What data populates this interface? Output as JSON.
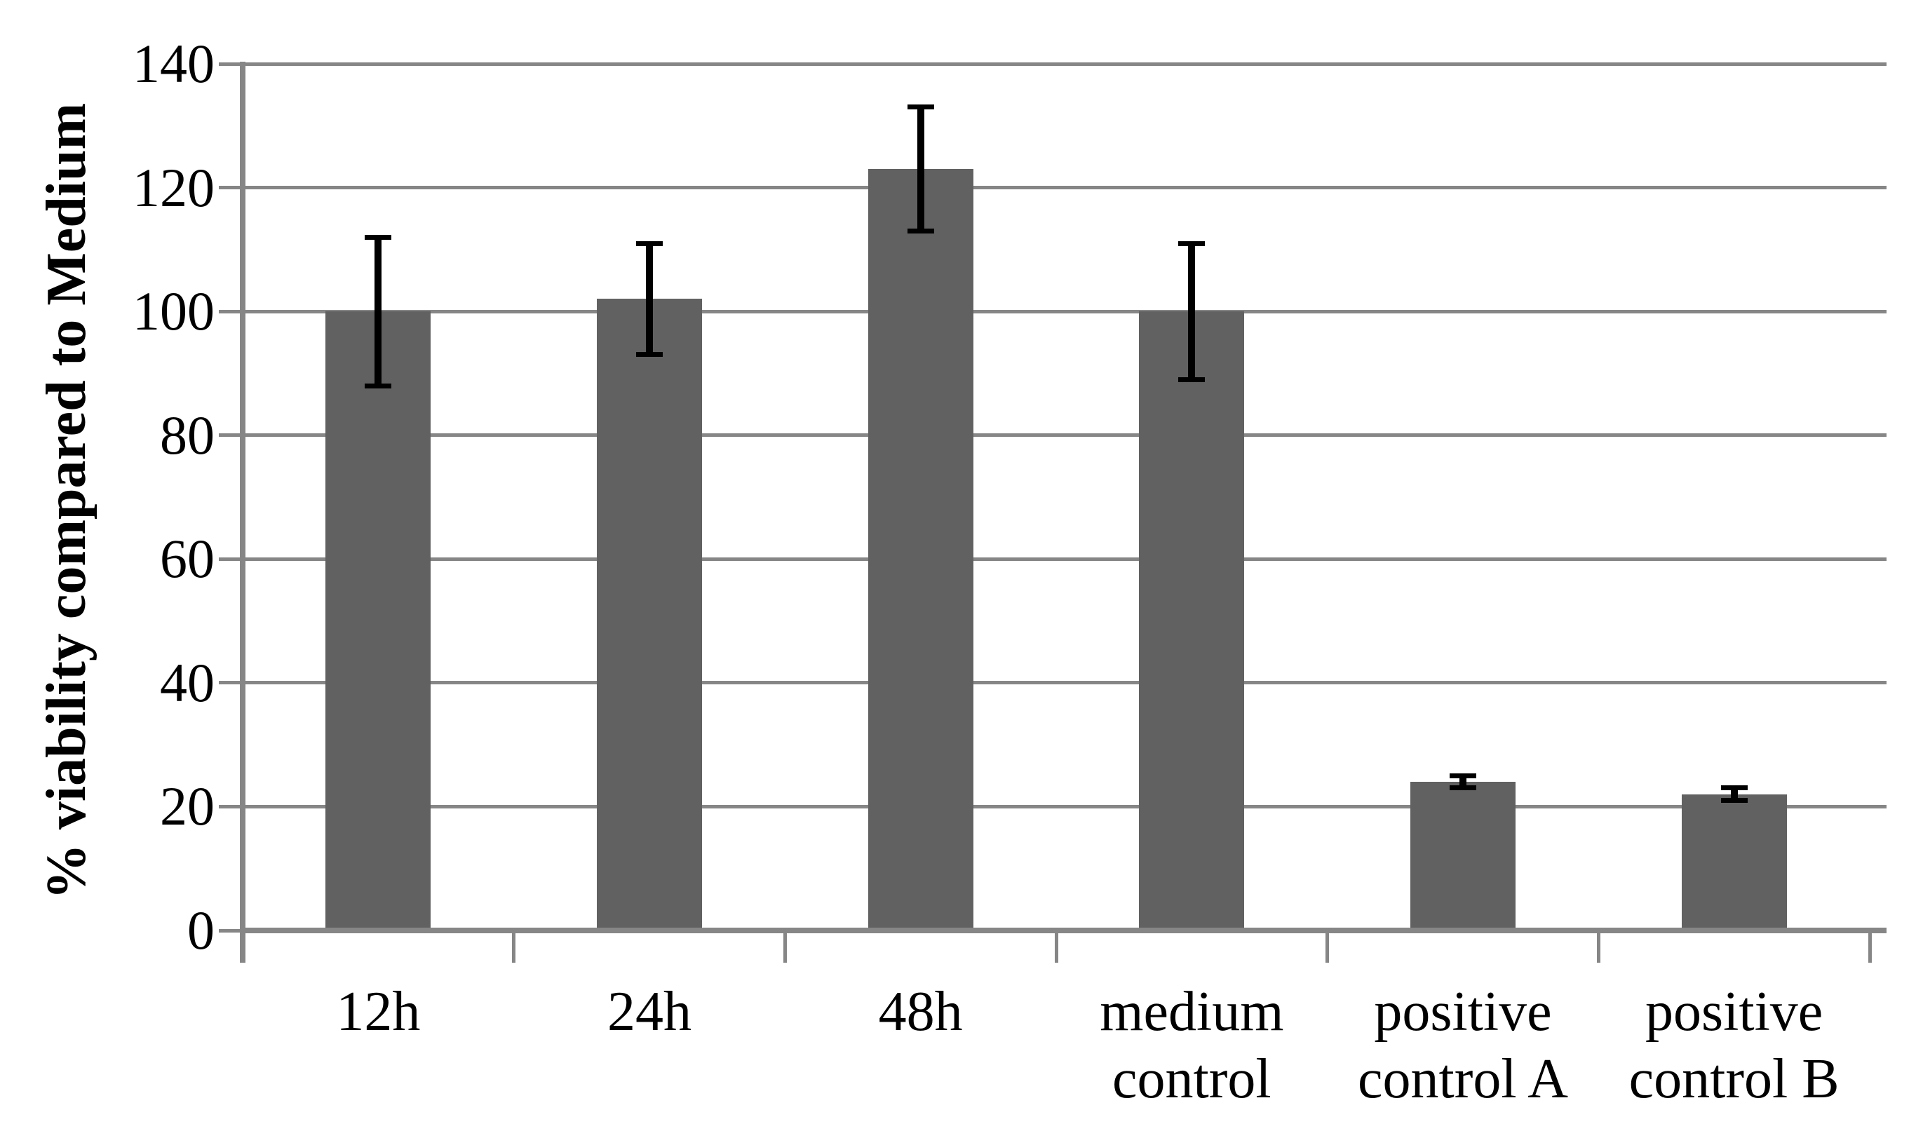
{
  "chart_data": {
    "type": "bar",
    "title": "",
    "ylabel": "% viability compared to Medium",
    "xlabel": "",
    "categories": [
      "12h",
      "24h",
      "48h",
      "medium control",
      "positive control A",
      "positive control B"
    ],
    "category_display_labels": [
      "12h",
      "24h",
      "48h",
      "medium\ncontrol",
      "positive\ncontrol A",
      "positive\ncontrol B"
    ],
    "values": [
      100,
      102,
      123,
      100,
      24,
      22
    ],
    "error_bars_plus": [
      12,
      9,
      10,
      11,
      1,
      1
    ],
    "error_bars_minus": [
      12,
      9,
      10,
      11,
      1,
      1
    ],
    "ylim": [
      0,
      140
    ],
    "yticks": [
      0,
      20,
      40,
      60,
      80,
      100,
      120,
      140
    ],
    "grid": "horizontal",
    "legend_position": "none",
    "series_count": 1,
    "colors": {
      "bar": "#616161",
      "gridline": "#868686",
      "axis": "#868686",
      "error_bar": "#000000",
      "text": "#000000",
      "background": "#ffffff"
    }
  }
}
